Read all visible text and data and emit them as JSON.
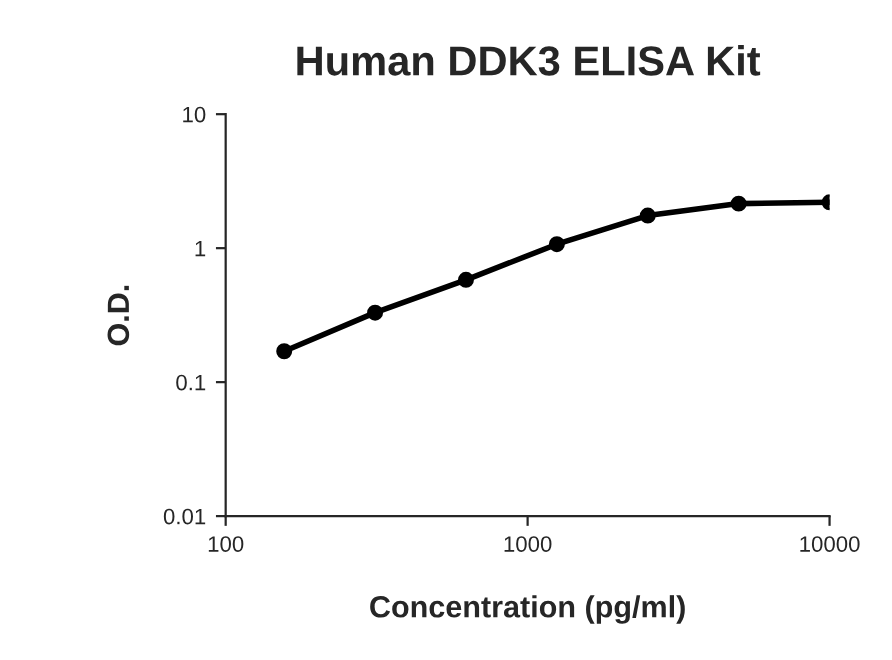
{
  "chart_data": {
    "type": "line",
    "title": "Human DDK3 ELISA Kit",
    "xlabel": "Concentration (pg/ml)",
    "ylabel": "O.D.",
    "x": [
      156.25,
      312.5,
      625,
      1250,
      2500,
      5000,
      10000
    ],
    "series": [
      {
        "color": "#000000",
        "values": [
          0.17,
          0.33,
          0.58,
          1.07,
          1.75,
          2.15,
          2.2
        ]
      }
    ],
    "log": "xy",
    "xlim": [
      100,
      10000
    ],
    "xticks": [
      100,
      1000,
      10000
    ],
    "ylim": [
      0.01,
      10
    ],
    "yticks": [
      0.01,
      0.1,
      1,
      10
    ],
    "marker": "circle",
    "line_style": "solid",
    "grid": false,
    "legend": false
  }
}
